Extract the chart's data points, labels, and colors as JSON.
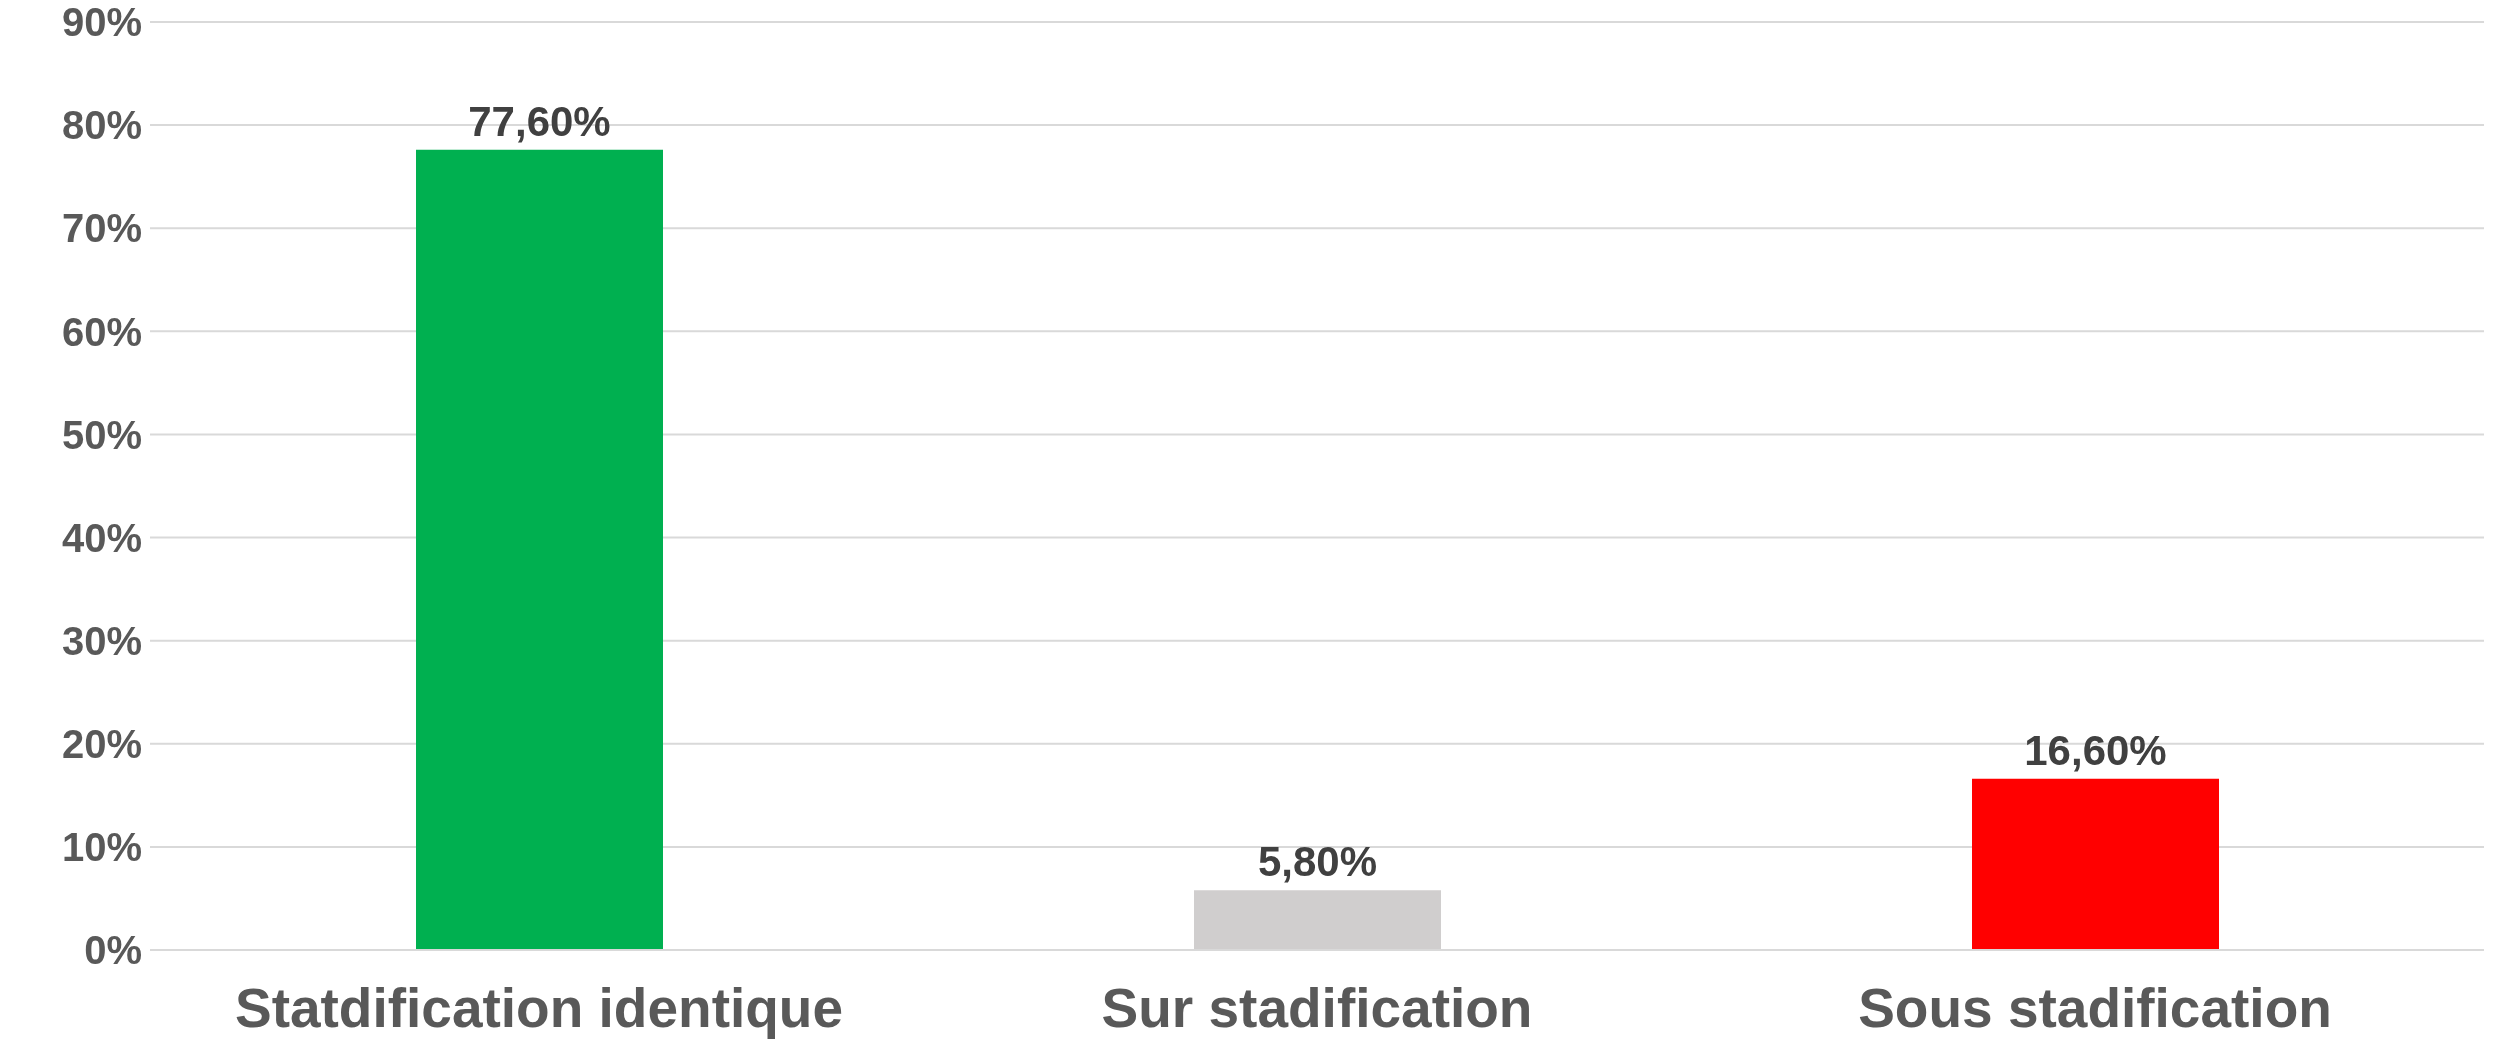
{
  "chart_data": {
    "type": "bar",
    "categories": [
      "Statdification identique",
      "Sur stadification",
      "Sous stadification"
    ],
    "values": [
      77.6,
      5.8,
      16.6
    ],
    "colors": [
      "#00b050",
      "#d0cece",
      "#ff0000"
    ],
    "value_labels": [
      "77,60%",
      "5,80%",
      "16,60%"
    ],
    "ylim": [
      0,
      90
    ],
    "yticks": [
      {
        "value": 0,
        "label": "0%"
      },
      {
        "value": 10,
        "label": "10%"
      },
      {
        "value": 20,
        "label": "20%"
      },
      {
        "value": 30,
        "label": "30%"
      },
      {
        "value": 40,
        "label": "40%"
      },
      {
        "value": 50,
        "label": "50%"
      },
      {
        "value": 60,
        "label": "60%"
      },
      {
        "value": 70,
        "label": "70%"
      },
      {
        "value": 80,
        "label": "80%"
      },
      {
        "value": 90,
        "label": "90%"
      }
    ],
    "grid": "y",
    "legend": false
  }
}
